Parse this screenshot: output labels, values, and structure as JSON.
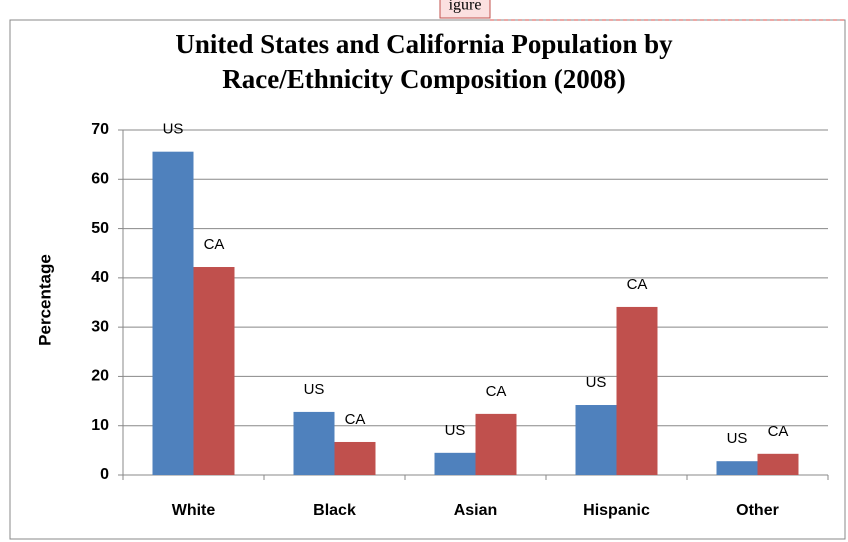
{
  "tab_label": "igure",
  "chart_data": {
    "type": "bar",
    "title": [
      "United States and California Population by",
      "Race/Ethnicity Composition (2008)"
    ],
    "y_label": "Percentage",
    "categories": [
      "White",
      "Black",
      "Asian",
      "Hispanic",
      "Other"
    ],
    "series": [
      {
        "name": "US",
        "color": "#4f81bd",
        "values": [
          65.6,
          12.8,
          4.5,
          14.2,
          2.8
        ]
      },
      {
        "name": "CA",
        "color": "#c0504d",
        "values": [
          42.2,
          6.7,
          12.4,
          34.1,
          4.3
        ]
      }
    ],
    "ylim": [
      0,
      70
    ],
    "yticks": [
      0,
      10,
      20,
      30,
      40,
      50,
      60,
      70
    ],
    "grid": true
  }
}
